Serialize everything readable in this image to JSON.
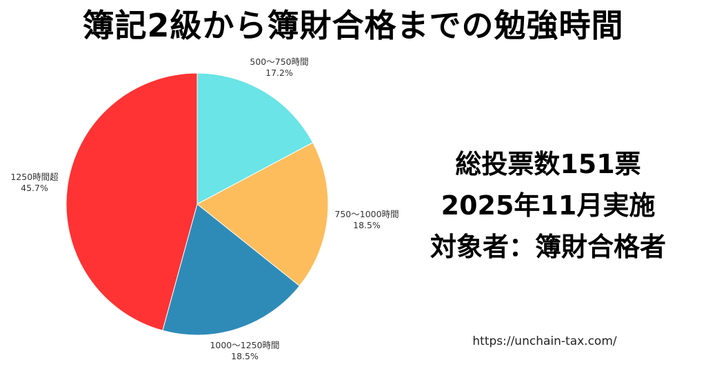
{
  "title": "簿記2級から簿財合格までの勉強時間",
  "info": {
    "line1": "総投票数151票",
    "line2": "2025年11月実施",
    "line3": "対象者：簿財合格者"
  },
  "url": "https://unchain-tax.com/",
  "labels": [
    {
      "name": "500〜750時間",
      "pct": "17.2%"
    },
    {
      "name": "750〜1000時間",
      "pct": "18.5%"
    },
    {
      "name": "1000〜1250時間",
      "pct": "18.5%"
    },
    {
      "name": "1250時間超",
      "pct": "45.7%"
    }
  ],
  "chart_data": {
    "type": "pie",
    "title": "簿記2級から簿財合格までの勉強時間",
    "categories": [
      "500〜750時間",
      "750〜1000時間",
      "1000〜1250時間",
      "1250時間超"
    ],
    "values": [
      17.2,
      18.5,
      18.5,
      45.7
    ],
    "colors": [
      "#6AE4E6",
      "#FDBD5C",
      "#2E8BB8",
      "#FF3333"
    ],
    "start_angle": "12 o'clock, clockwise",
    "annotations": [
      "総投票数151票",
      "2025年11月実施",
      "対象者：簿財合格者"
    ],
    "legend": "none (labels outside slices)"
  }
}
